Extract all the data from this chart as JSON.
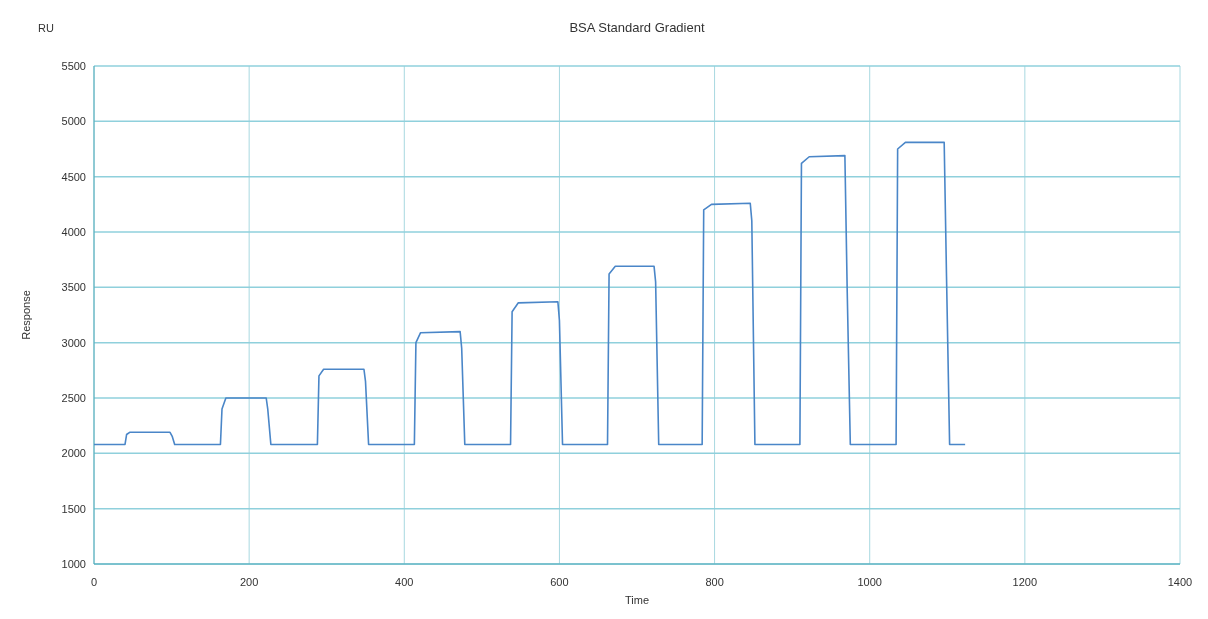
{
  "chart_data": {
    "type": "line",
    "title": "BSA Standard Gradient",
    "xlabel": "Time",
    "ylabel": "Response",
    "annotations": [
      "RU"
    ],
    "series": [
      {
        "color": "#4a86c8",
        "x": [
          0,
          40,
          42,
          46,
          98,
          101,
          104,
          163,
          165,
          170,
          222,
          224,
          228,
          288,
          290,
          296,
          348,
          350,
          354,
          413,
          415,
          421,
          472,
          474,
          478,
          537,
          539,
          547,
          598,
          600,
          604,
          662,
          664,
          672,
          722,
          724,
          728,
          784,
          786,
          796,
          846,
          848,
          852,
          910,
          912,
          922,
          968,
          971,
          975,
          1034,
          1036,
          1046,
          1096,
          1099,
          1103,
          1123
        ],
        "values": [
          2080,
          2080,
          2170,
          2190,
          2190,
          2150,
          2080,
          2080,
          2400,
          2500,
          2500,
          2400,
          2080,
          2080,
          2700,
          2760,
          2760,
          2650,
          2080,
          2080,
          3000,
          3090,
          3100,
          2950,
          2080,
          2080,
          3280,
          3360,
          3370,
          3200,
          2080,
          2080,
          3620,
          3690,
          3690,
          3550,
          2080,
          2080,
          4200,
          4250,
          4260,
          4100,
          2080,
          2080,
          4620,
          4680,
          4690,
          3460,
          2080,
          2080,
          4750,
          4810,
          4810,
          3600,
          2080,
          2080
        ]
      }
    ],
    "xlim": [
      0,
      1400
    ],
    "xticks": [
      0,
      200,
      400,
      600,
      800,
      1000,
      1200,
      1400
    ],
    "ylim": [
      1000,
      5500
    ],
    "yticks": [
      1000,
      1500,
      2000,
      2500,
      3000,
      3500,
      4000,
      4500,
      5000,
      5500
    ],
    "grid": true,
    "marker": "none",
    "line_style": "solid"
  }
}
